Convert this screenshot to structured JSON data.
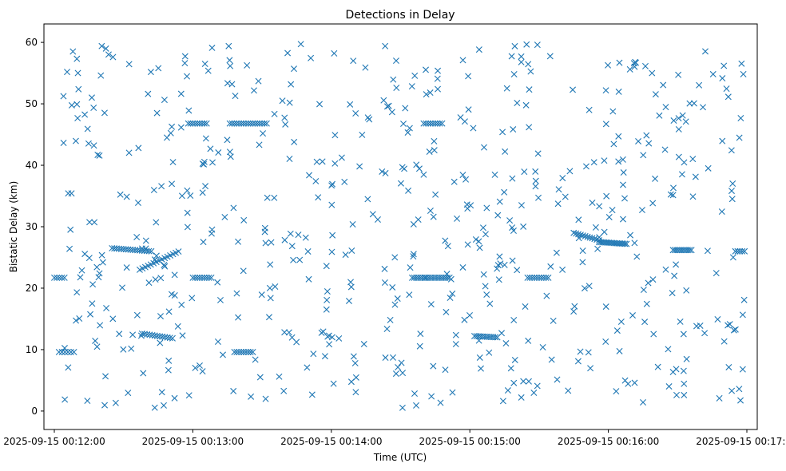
{
  "chart_data": {
    "type": "scatter",
    "title": "Detections in Delay",
    "xlabel": "Time (UTC)",
    "ylabel": "Bistatic Delay (km)",
    "marker": "x",
    "color": "#1f77b4",
    "x_unit": "seconds after 2025-09-15 00:12:00 UTC",
    "xlim": [
      -4.5,
      304.5
    ],
    "ylim": [
      -3,
      63
    ],
    "x_ticks": [
      0,
      60,
      120,
      180,
      240,
      300
    ],
    "x_tick_labels": [
      "2025-09-15 00:12:00",
      "2025-09-15 00:13:00",
      "2025-09-15 00:14:00",
      "2025-09-15 00:15:00",
      "2025-09-15 00:16:00",
      "2025-09-15 00:17:00"
    ],
    "y_ticks": [
      0,
      10,
      20,
      30,
      40,
      50,
      60
    ],
    "y_tick_labels": [
      "0",
      "10",
      "20",
      "30",
      "40",
      "50",
      "60"
    ],
    "grid": false,
    "tracks": [
      {
        "x0": 0,
        "x1": 5,
        "step": 1.1,
        "y0": 21.7,
        "y1": 21.7
      },
      {
        "x0": 2,
        "x1": 9,
        "step": 1.3,
        "y0": 9.6,
        "y1": 9.6
      },
      {
        "x0": 25,
        "x1": 42,
        "step": 1.0,
        "y0": 26.5,
        "y1": 26.0
      },
      {
        "x0": 38,
        "x1": 52,
        "step": 1.1,
        "y0": 12.6,
        "y1": 11.8
      },
      {
        "x0": 37,
        "x1": 54,
        "step": 1.2,
        "y0": 23.0,
        "y1": 26.0
      },
      {
        "x0": 60,
        "x1": 68,
        "step": 1.0,
        "y0": 21.7,
        "y1": 21.7
      },
      {
        "x0": 58,
        "x1": 66,
        "step": 1.0,
        "y0": 46.8,
        "y1": 46.8
      },
      {
        "x0": 76,
        "x1": 84,
        "step": 1.0,
        "y0": 46.8,
        "y1": 46.8
      },
      {
        "x0": 78,
        "x1": 86,
        "step": 1.0,
        "y0": 9.6,
        "y1": 9.6
      },
      {
        "x0": 85,
        "x1": 92,
        "step": 1.0,
        "y0": 46.8,
        "y1": 46.8
      },
      {
        "x0": 155,
        "x1": 172,
        "step": 0.9,
        "y0": 21.7,
        "y1": 21.7
      },
      {
        "x0": 160,
        "x1": 168,
        "step": 1.0,
        "y0": 46.8,
        "y1": 46.8
      },
      {
        "x0": 182,
        "x1": 192,
        "step": 0.9,
        "y0": 12.2,
        "y1": 12.0
      },
      {
        "x0": 205,
        "x1": 214,
        "step": 1.0,
        "y0": 21.7,
        "y1": 21.7
      },
      {
        "x0": 225,
        "x1": 236,
        "step": 1.0,
        "y0": 29.0,
        "y1": 27.8
      },
      {
        "x0": 236,
        "x1": 248,
        "step": 0.7,
        "y0": 27.5,
        "y1": 27.2
      },
      {
        "x0": 268,
        "x1": 276,
        "step": 0.8,
        "y0": 26.2,
        "y1": 26.2
      },
      {
        "x0": 295,
        "x1": 299,
        "step": 1.0,
        "y0": 26.0,
        "y1": 26.0
      }
    ],
    "scattered": {
      "count": 600,
      "x_range": [
        0,
        299
      ],
      "y_range": [
        0.5,
        59.8
      ],
      "seed": 20250915
    }
  }
}
